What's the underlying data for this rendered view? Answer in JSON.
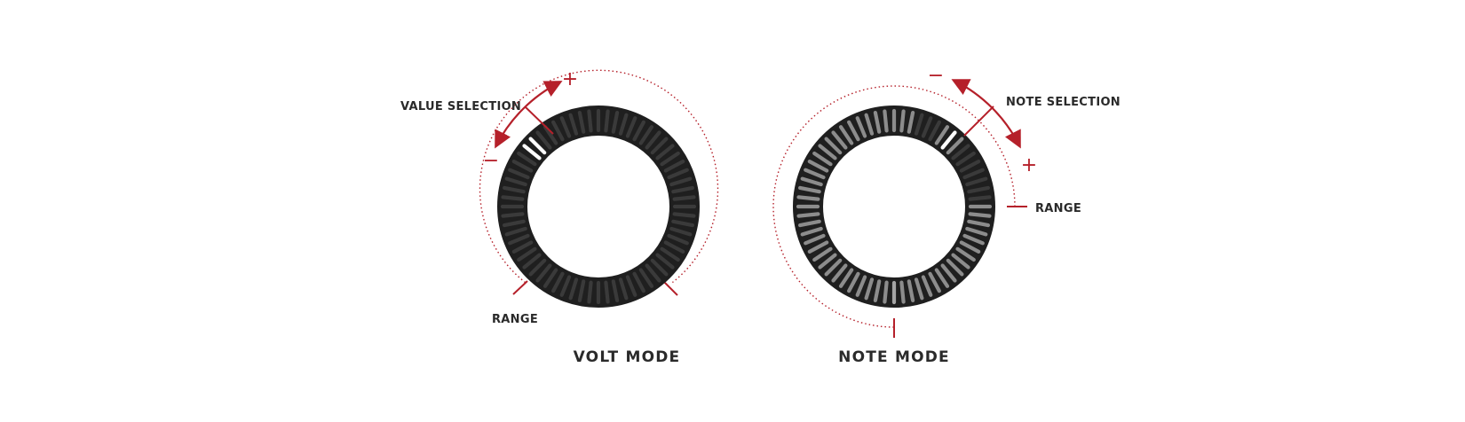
{
  "colors": {
    "accent": "#b5202a",
    "ring": "#1f1f1f",
    "segment_off": "#3a3a3a",
    "segment_lit": "#8c8c8c",
    "segment_bright": "#ffffff"
  },
  "volt": {
    "title": "VOLT MODE",
    "value_label": "VALUE SELECTION",
    "range_label": "RANGE",
    "plus": "+",
    "minus": "−"
  },
  "note": {
    "title": "NOTE MODE",
    "value_label": "NOTE SELECTION",
    "range_label": "RANGE",
    "plus": "+",
    "minus": "−"
  }
}
